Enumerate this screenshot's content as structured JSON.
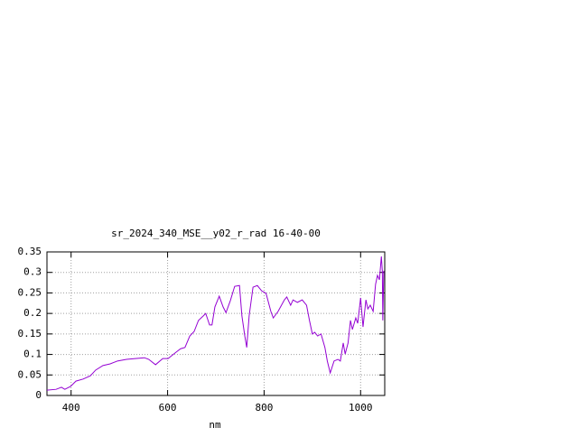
{
  "chart_data": {
    "type": "line",
    "title": "sr_2024_340_MSE__y02_r_rad 16-40-00",
    "x_label": "nm",
    "x": [
      350,
      369,
      380,
      387,
      399,
      410,
      425,
      440,
      451,
      466,
      481,
      496,
      515,
      533,
      552,
      561,
      575,
      590,
      601,
      618,
      627,
      636,
      646,
      655,
      664,
      674,
      679,
      687,
      692,
      698,
      707,
      715,
      721,
      730,
      739,
      749,
      754,
      760,
      764,
      769,
      777,
      786,
      795,
      804,
      814,
      819,
      829,
      842,
      847,
      855,
      860,
      869,
      879,
      888,
      894,
      900,
      905,
      911,
      918,
      926,
      931,
      937,
      945,
      953,
      958,
      964,
      968,
      974,
      979,
      983,
      990,
      994,
      1000,
      1005,
      1011,
      1015,
      1020,
      1026,
      1031,
      1035,
      1039,
      1043,
      1045,
      1046,
      1048
    ],
    "series": [
      {
        "name": "rad",
        "color": "#9400d3",
        "values": [
          0.013,
          0.015,
          0.02,
          0.015,
          0.022,
          0.035,
          0.04,
          0.048,
          0.062,
          0.073,
          0.077,
          0.084,
          0.088,
          0.09,
          0.092,
          0.088,
          0.075,
          0.09,
          0.09,
          0.106,
          0.114,
          0.117,
          0.145,
          0.156,
          0.183,
          0.194,
          0.2,
          0.172,
          0.172,
          0.216,
          0.242,
          0.216,
          0.202,
          0.231,
          0.266,
          0.268,
          0.194,
          0.145,
          0.117,
          0.194,
          0.264,
          0.268,
          0.255,
          0.249,
          0.205,
          0.189,
          0.205,
          0.233,
          0.24,
          0.22,
          0.233,
          0.227,
          0.233,
          0.22,
          0.183,
          0.15,
          0.154,
          0.145,
          0.15,
          0.117,
          0.084,
          0.055,
          0.084,
          0.088,
          0.084,
          0.128,
          0.101,
          0.128,
          0.183,
          0.161,
          0.189,
          0.176,
          0.238,
          0.167,
          0.233,
          0.211,
          0.22,
          0.205,
          0.271,
          0.293,
          0.282,
          0.339,
          0.304,
          0.183,
          0.304
        ]
      }
    ],
    "xlim": [
      350,
      1050
    ],
    "ylim": [
      0,
      0.35
    ],
    "xticks": [
      400,
      600,
      800,
      1000
    ],
    "yticks": [
      0,
      0.05,
      0.1,
      0.15,
      0.2,
      0.25,
      0.3,
      0.35
    ],
    "grid": true
  }
}
